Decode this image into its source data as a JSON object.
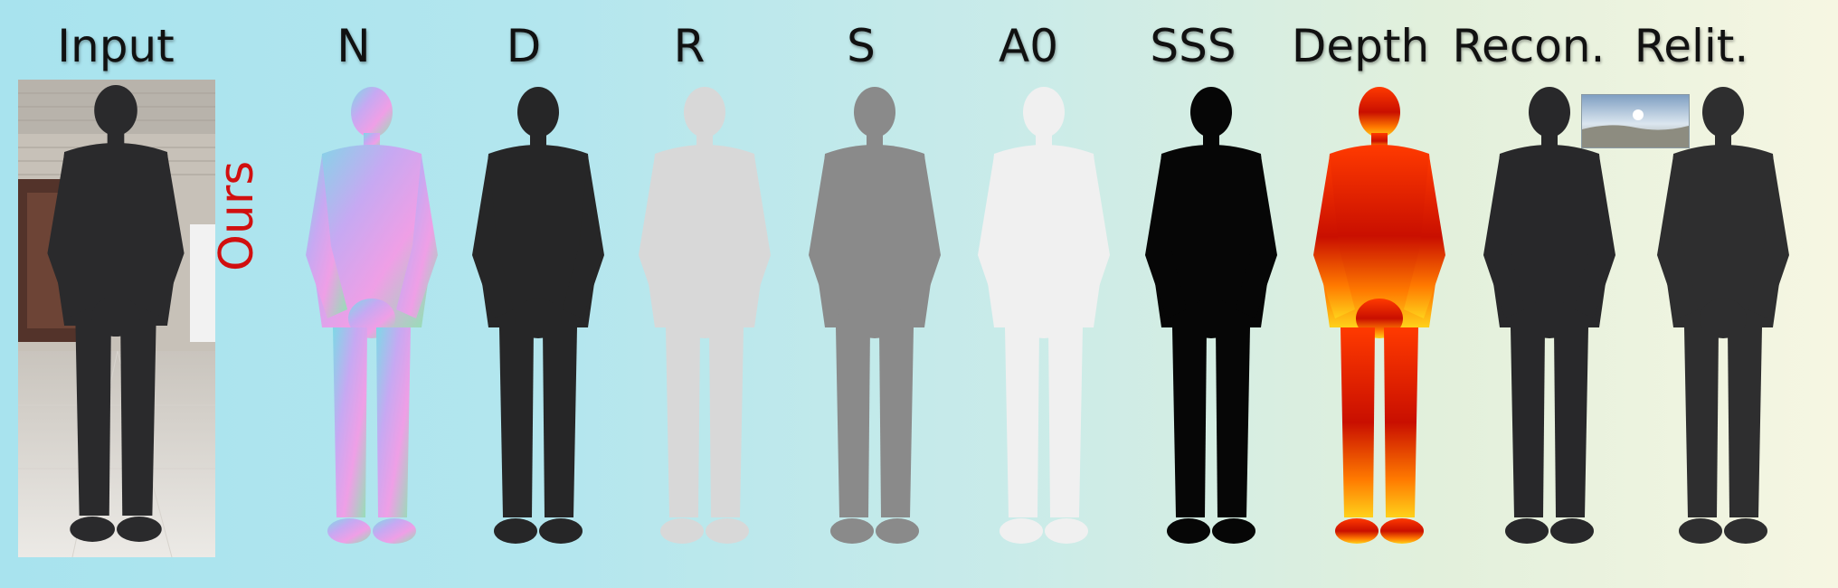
{
  "figure": {
    "row_label": "Ours",
    "columns": [
      {
        "key": "input",
        "label": "Input",
        "fill": "#2a2a2c"
      },
      {
        "key": "normal",
        "label": "N",
        "fill": "url(#gN)"
      },
      {
        "key": "diffuse",
        "label": "D",
        "fill": "#262627"
      },
      {
        "key": "rough",
        "label": "R",
        "fill": "#d8d8d8"
      },
      {
        "key": "spec",
        "label": "S",
        "fill": "#8a8a8a"
      },
      {
        "key": "ao",
        "label": "A0",
        "fill": "#f0f0f0"
      },
      {
        "key": "sss",
        "label": "SSS",
        "fill": "#060606"
      },
      {
        "key": "depth",
        "label": "Depth",
        "fill": "url(#gD)"
      },
      {
        "key": "recon",
        "label": "Recon.",
        "fill": "#28282a"
      },
      {
        "key": "relit",
        "label": "Relit.",
        "fill": "#2e2e2f"
      }
    ],
    "colors": {
      "row_label": "#d10f0f",
      "bg_left": "#a8e3ee",
      "bg_right": "#f6f6e2"
    }
  }
}
